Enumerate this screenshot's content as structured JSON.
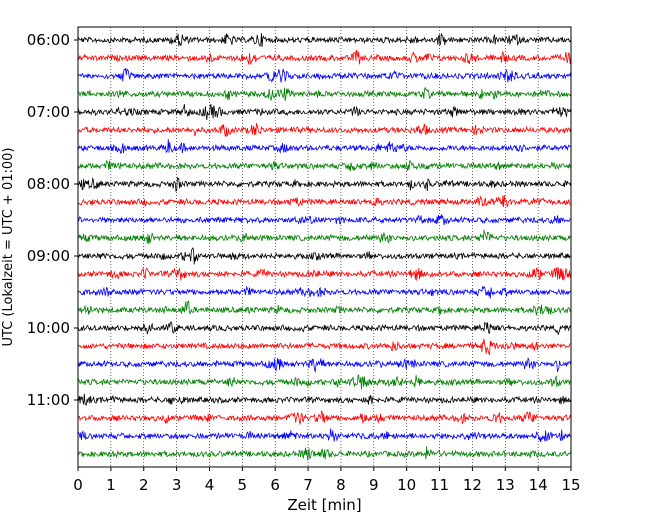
{
  "chart_data": {
    "type": "line",
    "title": "",
    "xlabel": "Zeit  [min]",
    "ylabel": "UTC (Lokalzeit = UTC + 01:00)",
    "xlim": [
      0,
      15
    ],
    "x_ticks": [
      0,
      1,
      2,
      3,
      4,
      5,
      6,
      7,
      8,
      9,
      10,
      11,
      12,
      13,
      14,
      15
    ],
    "x_tick_labels": [
      "0",
      "1",
      "2",
      "3",
      "4",
      "5",
      "6",
      "7",
      "8",
      "9",
      "10",
      "11",
      "12",
      "13",
      "14",
      "15"
    ],
    "y_ticks": [
      "06:00",
      "07:00",
      "08:00",
      "09:00",
      "10:00",
      "11:00"
    ],
    "y_tick_row_index": [
      0,
      4,
      8,
      12,
      16,
      20
    ],
    "trace_interval_min": 15,
    "traces": [
      {
        "start": "06:00",
        "color": "#000000"
      },
      {
        "start": "06:15",
        "color": "#ff0000"
      },
      {
        "start": "06:30",
        "color": "#0000ff"
      },
      {
        "start": "06:45",
        "color": "#008000"
      },
      {
        "start": "07:00",
        "color": "#000000"
      },
      {
        "start": "07:15",
        "color": "#ff0000"
      },
      {
        "start": "07:30",
        "color": "#0000ff"
      },
      {
        "start": "07:45",
        "color": "#008000"
      },
      {
        "start": "08:00",
        "color": "#000000"
      },
      {
        "start": "08:15",
        "color": "#ff0000"
      },
      {
        "start": "08:30",
        "color": "#0000ff"
      },
      {
        "start": "08:45",
        "color": "#008000"
      },
      {
        "start": "09:00",
        "color": "#000000"
      },
      {
        "start": "09:15",
        "color": "#ff0000"
      },
      {
        "start": "09:30",
        "color": "#0000ff"
      },
      {
        "start": "09:45",
        "color": "#008000"
      },
      {
        "start": "10:00",
        "color": "#000000"
      },
      {
        "start": "10:15",
        "color": "#ff0000"
      },
      {
        "start": "10:30",
        "color": "#0000ff"
      },
      {
        "start": "10:45",
        "color": "#008000"
      },
      {
        "start": "11:00",
        "color": "#000000"
      },
      {
        "start": "11:15",
        "color": "#ff0000"
      },
      {
        "start": "11:30",
        "color": "#0000ff"
      },
      {
        "start": "11:45",
        "color": "#008000"
      }
    ],
    "grid": "vertical dotted",
    "legend": "none"
  }
}
